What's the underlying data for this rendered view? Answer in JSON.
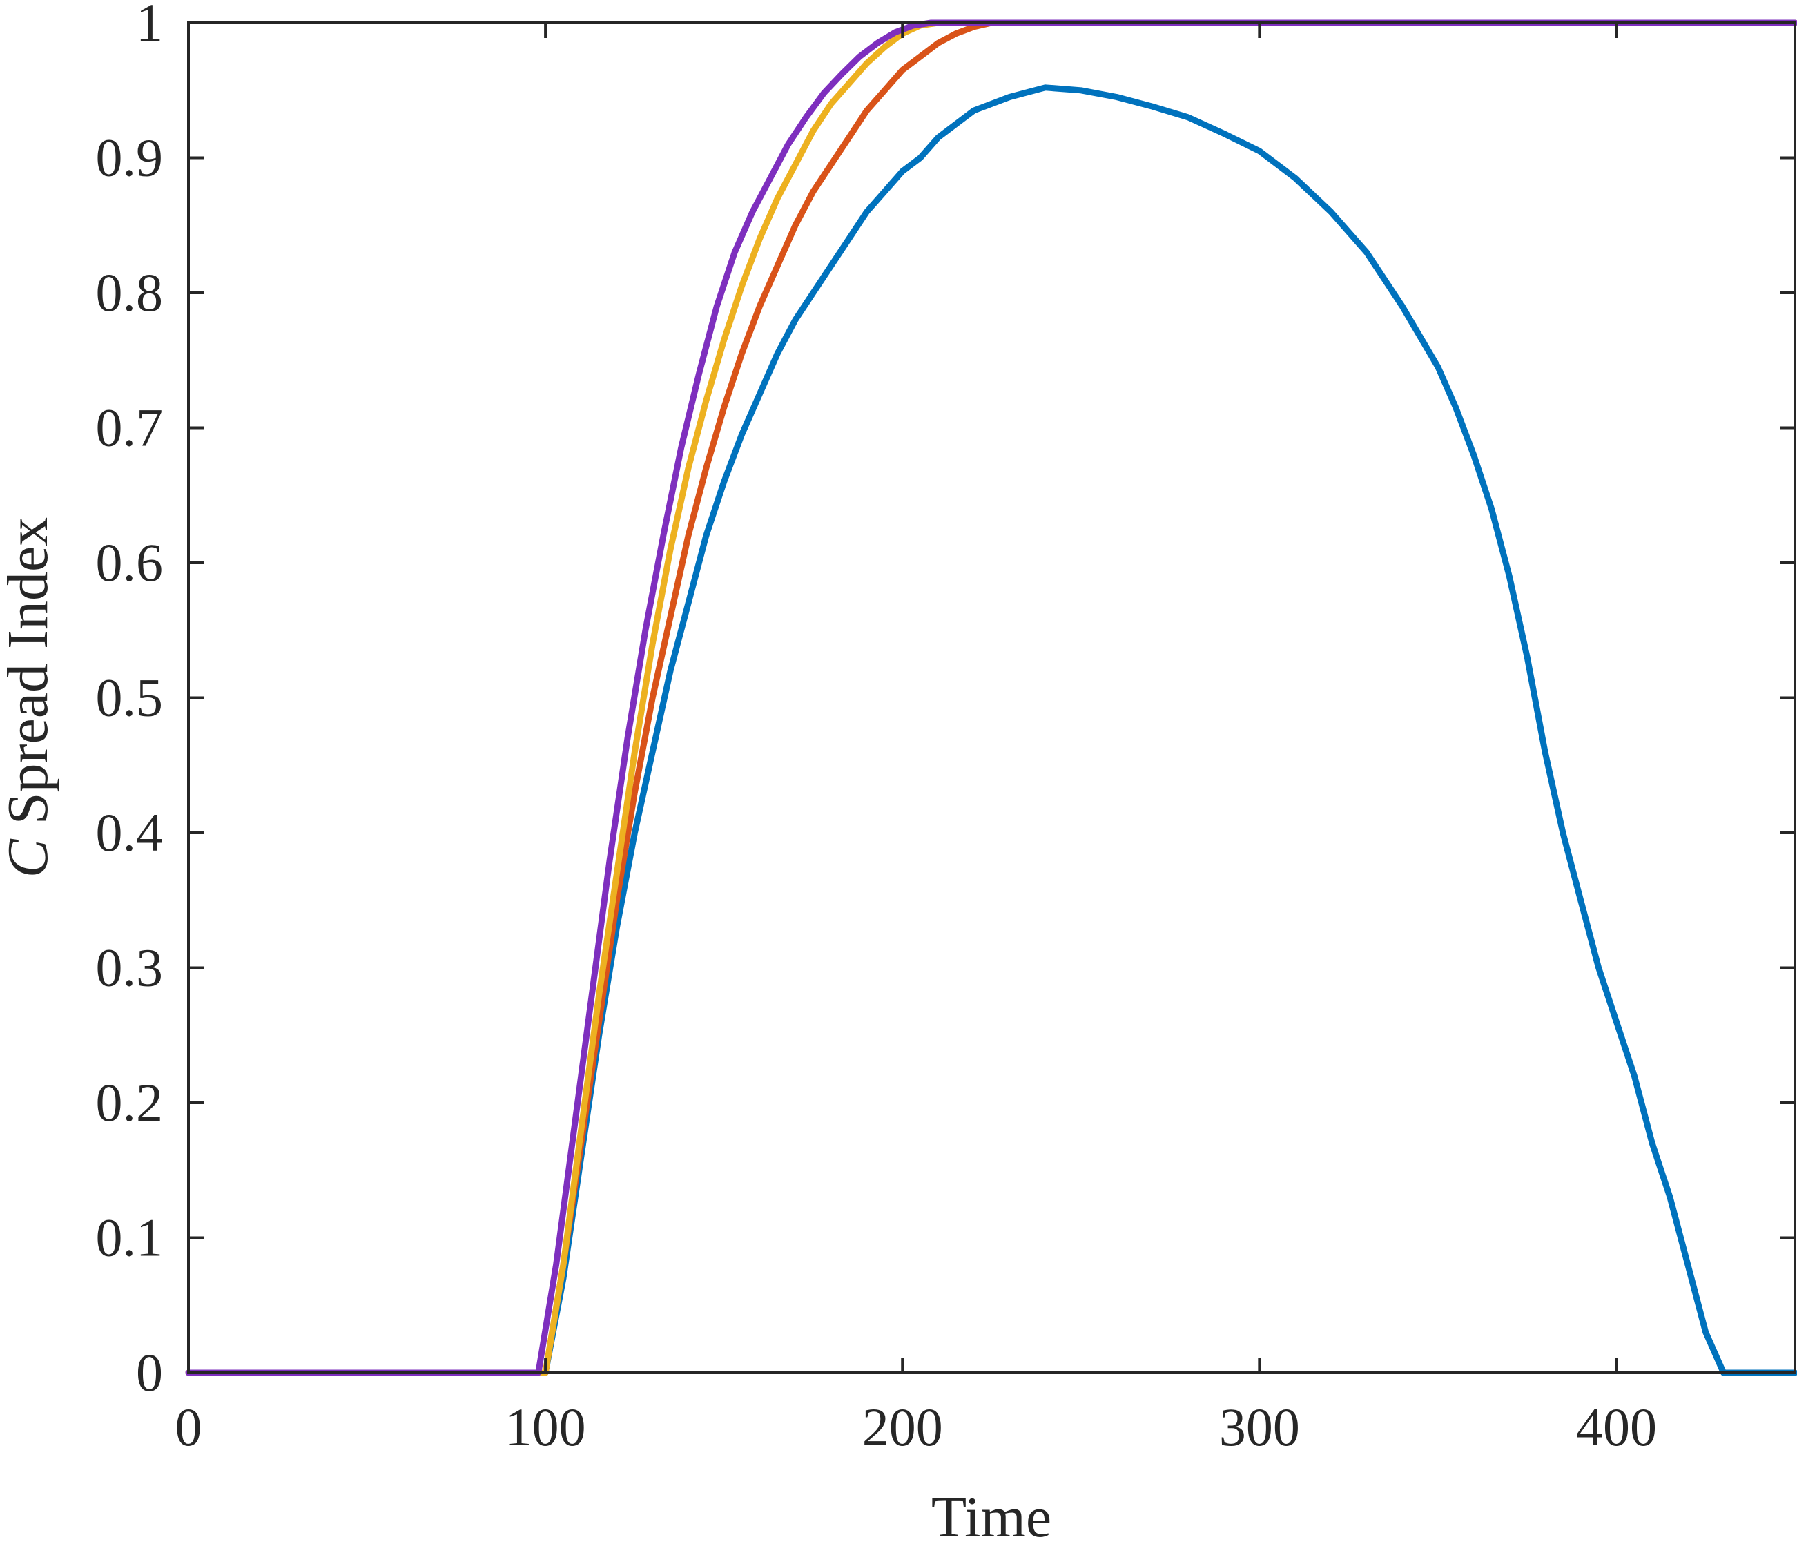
{
  "chart_data": {
    "type": "line",
    "xlabel": "Time",
    "ylabel_italic": "C",
    "ylabel_rest": " Spread Index",
    "xlim": [
      0,
      450
    ],
    "ylim": [
      0,
      1
    ],
    "xticks": [
      0,
      100,
      200,
      300,
      400
    ],
    "yticks": [
      0,
      0.1,
      0.2,
      0.3,
      0.4,
      0.5,
      0.6,
      0.7,
      0.8,
      0.9,
      1
    ],
    "ytick_labels": [
      "0",
      "0.1",
      "0.2",
      "0.3",
      "0.4",
      "0.5",
      "0.6",
      "0.7",
      "0.8",
      "0.9",
      "1"
    ],
    "grid": false,
    "series": [
      {
        "color": "#0072BD",
        "x": [
          0,
          100,
          105,
          110,
          115,
          120,
          125,
          130,
          135,
          140,
          145,
          150,
          155,
          160,
          165,
          170,
          175,
          180,
          185,
          190,
          195,
          200,
          205,
          210,
          220,
          230,
          240,
          250,
          260,
          270,
          280,
          290,
          300,
          310,
          320,
          330,
          340,
          350,
          355,
          360,
          365,
          370,
          375,
          380,
          385,
          390,
          395,
          400,
          405,
          410,
          415,
          420,
          425,
          430,
          435,
          440,
          445,
          450
        ],
        "y": [
          0,
          0,
          0.07,
          0.16,
          0.25,
          0.33,
          0.4,
          0.46,
          0.52,
          0.57,
          0.62,
          0.66,
          0.695,
          0.725,
          0.755,
          0.78,
          0.8,
          0.82,
          0.84,
          0.86,
          0.875,
          0.89,
          0.9,
          0.915,
          0.935,
          0.945,
          0.952,
          0.95,
          0.945,
          0.938,
          0.93,
          0.918,
          0.905,
          0.885,
          0.86,
          0.83,
          0.79,
          0.745,
          0.715,
          0.68,
          0.64,
          0.59,
          0.53,
          0.46,
          0.4,
          0.35,
          0.3,
          0.26,
          0.22,
          0.17,
          0.13,
          0.08,
          0.03,
          0,
          0,
          0,
          0,
          0
        ]
      },
      {
        "color": "#D95319",
        "x": [
          0,
          100,
          105,
          110,
          115,
          120,
          125,
          130,
          135,
          140,
          145,
          150,
          155,
          160,
          165,
          170,
          175,
          180,
          185,
          190,
          195,
          200,
          205,
          210,
          215,
          220,
          225,
          230,
          240,
          300,
          400,
          450
        ],
        "y": [
          0,
          0,
          0.08,
          0.17,
          0.26,
          0.35,
          0.43,
          0.5,
          0.56,
          0.62,
          0.67,
          0.715,
          0.755,
          0.79,
          0.82,
          0.85,
          0.875,
          0.895,
          0.915,
          0.935,
          0.95,
          0.965,
          0.975,
          0.985,
          0.992,
          0.997,
          1.0,
          1.0,
          1.0,
          1.0,
          1.0,
          1.0
        ]
      },
      {
        "color": "#EDB120",
        "x": [
          0,
          100,
          105,
          110,
          115,
          120,
          125,
          130,
          135,
          140,
          145,
          150,
          155,
          160,
          165,
          170,
          175,
          180,
          185,
          190,
          195,
          200,
          205,
          210,
          215,
          220,
          300,
          400,
          450
        ],
        "y": [
          0,
          0,
          0.08,
          0.18,
          0.28,
          0.37,
          0.46,
          0.54,
          0.61,
          0.67,
          0.72,
          0.765,
          0.805,
          0.84,
          0.87,
          0.895,
          0.92,
          0.94,
          0.955,
          0.97,
          0.982,
          0.992,
          0.998,
          1.0,
          1.0,
          1.0,
          1.0,
          1.0,
          1.0
        ]
      },
      {
        "color": "#7E2FBE",
        "x": [
          0,
          98,
          103,
          108,
          113,
          118,
          123,
          128,
          133,
          138,
          143,
          148,
          153,
          158,
          163,
          168,
          173,
          178,
          183,
          188,
          193,
          198,
          203,
          208,
          213,
          300,
          400,
          450
        ],
        "y": [
          0,
          0,
          0.08,
          0.18,
          0.28,
          0.38,
          0.47,
          0.55,
          0.62,
          0.685,
          0.74,
          0.79,
          0.83,
          0.86,
          0.885,
          0.91,
          0.93,
          0.948,
          0.962,
          0.975,
          0.985,
          0.993,
          0.998,
          1.0,
          1.0,
          1.0,
          1.0,
          1.0
        ]
      }
    ]
  }
}
